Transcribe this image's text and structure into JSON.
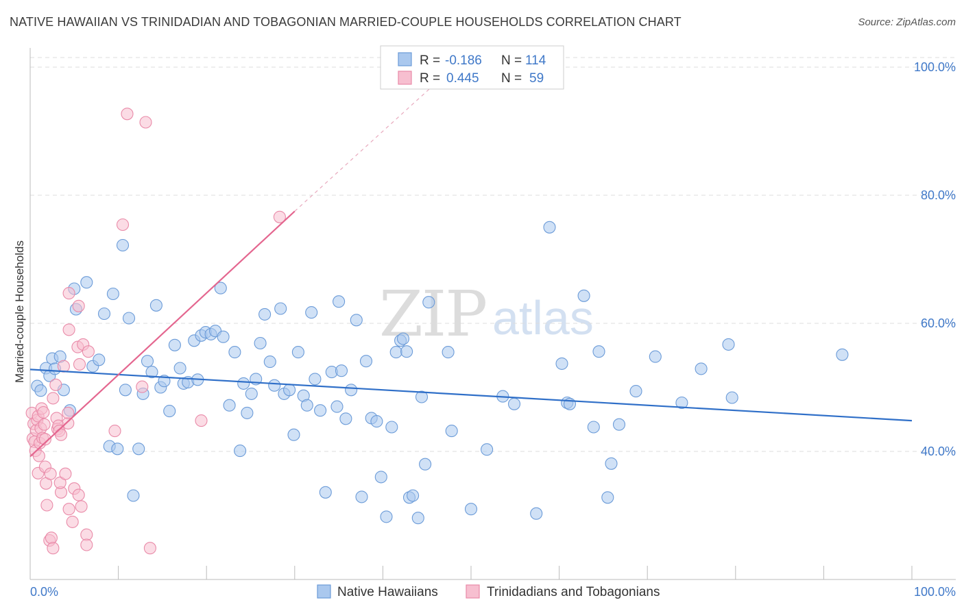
{
  "header": {
    "title": "NATIVE HAWAIIAN VS TRINIDADIAN AND TOBAGONIAN MARRIED-COUPLE HOUSEHOLDS CORRELATION CHART",
    "source": "Source: ZipAtlas.com"
  },
  "watermark": {
    "zip": "ZIP",
    "atlas": "atlas"
  },
  "legend_top": {
    "rows": [
      {
        "r_label": "R = ",
        "r_value": "-0.186",
        "n_label": "N = ",
        "n_value": "114"
      },
      {
        "r_label": "R = ",
        "r_value": "0.445",
        "n_label": "N = ",
        "n_value": "59"
      }
    ]
  },
  "colors": {
    "blue_fill": "#aac8ee",
    "blue_stroke": "#6b9bd8",
    "blue_line": "#2f6fc8",
    "pink_fill": "#f7bfd0",
    "pink_stroke": "#e98aa8",
    "pink_line": "#e4668f",
    "grid": "#dddddd",
    "axis_text": "#3f78c8"
  },
  "chart_data": {
    "type": "scatter",
    "title": "NATIVE HAWAIIAN VS TRINIDADIAN AND TOBAGONIAN MARRIED-COUPLE HOUSEHOLDS CORRELATION CHART",
    "xlabel": "",
    "ylabel": "Married-couple Households",
    "xlim": [
      0,
      100
    ],
    "ylim": [
      20,
      103
    ],
    "x_tick_labels": [
      "0.0%",
      "100.0%"
    ],
    "y_ticks": [
      40,
      60,
      80,
      100
    ],
    "y_tick_labels": [
      "40.0%",
      "60.0%",
      "80.0%",
      "100.0%"
    ],
    "grid": true,
    "legend_position": "bottom",
    "series": [
      {
        "name": "Native Hawaiians",
        "color": "#aac8ee",
        "r": -0.186,
        "n": 114,
        "trend": {
          "x": [
            0,
            100
          ],
          "y": [
            52.8,
            44.8
          ],
          "dashed_extension": false
        },
        "points": [
          [
            0.8,
            50.2
          ],
          [
            1.2,
            49.5
          ],
          [
            1.8,
            53.0
          ],
          [
            2.2,
            51.8
          ],
          [
            2.5,
            54.5
          ],
          [
            2.8,
            52.9
          ],
          [
            3.4,
            54.8
          ],
          [
            3.8,
            49.6
          ],
          [
            4.5,
            46.4
          ],
          [
            5.0,
            65.4
          ],
          [
            5.2,
            62.2
          ],
          [
            6.4,
            66.4
          ],
          [
            7.1,
            53.3
          ],
          [
            7.8,
            54.3
          ],
          [
            8.4,
            61.5
          ],
          [
            9.0,
            40.8
          ],
          [
            9.4,
            64.6
          ],
          [
            9.9,
            40.4
          ],
          [
            10.5,
            72.2
          ],
          [
            10.8,
            49.6
          ],
          [
            11.2,
            60.8
          ],
          [
            11.7,
            33.1
          ],
          [
            12.3,
            40.4
          ],
          [
            12.8,
            49.0
          ],
          [
            13.3,
            54.1
          ],
          [
            13.8,
            52.4
          ],
          [
            14.3,
            62.8
          ],
          [
            14.8,
            50.0
          ],
          [
            15.2,
            51.0
          ],
          [
            15.8,
            46.3
          ],
          [
            16.4,
            56.6
          ],
          [
            17.0,
            53.0
          ],
          [
            17.4,
            50.6
          ],
          [
            17.9,
            50.8
          ],
          [
            18.6,
            57.3
          ],
          [
            19.0,
            51.2
          ],
          [
            19.4,
            58.1
          ],
          [
            19.9,
            58.6
          ],
          [
            20.5,
            58.3
          ],
          [
            21.0,
            58.8
          ],
          [
            21.6,
            65.5
          ],
          [
            21.9,
            57.9
          ],
          [
            22.6,
            47.2
          ],
          [
            23.2,
            55.5
          ],
          [
            23.8,
            40.1
          ],
          [
            24.2,
            50.6
          ],
          [
            24.6,
            46.0
          ],
          [
            25.1,
            49.0
          ],
          [
            25.6,
            51.3
          ],
          [
            26.1,
            56.9
          ],
          [
            26.6,
            61.4
          ],
          [
            27.2,
            54.0
          ],
          [
            27.7,
            50.3
          ],
          [
            28.4,
            62.3
          ],
          [
            28.8,
            49.0
          ],
          [
            29.4,
            49.6
          ],
          [
            29.9,
            42.6
          ],
          [
            30.4,
            55.5
          ],
          [
            31.0,
            48.7
          ],
          [
            31.4,
            47.2
          ],
          [
            31.9,
            61.7
          ],
          [
            32.3,
            51.3
          ],
          [
            32.9,
            46.4
          ],
          [
            33.5,
            33.6
          ],
          [
            34.2,
            52.4
          ],
          [
            35.0,
            63.4
          ],
          [
            34.8,
            47.0
          ],
          [
            35.3,
            52.6
          ],
          [
            35.8,
            45.1
          ],
          [
            36.4,
            49.6
          ],
          [
            37.0,
            60.5
          ],
          [
            37.6,
            32.9
          ],
          [
            38.1,
            54.1
          ],
          [
            38.7,
            45.2
          ],
          [
            39.3,
            44.7
          ],
          [
            39.8,
            36.0
          ],
          [
            40.4,
            29.8
          ],
          [
            41.0,
            43.8
          ],
          [
            41.5,
            55.5
          ],
          [
            42.0,
            57.3
          ],
          [
            42.3,
            57.6
          ],
          [
            42.7,
            55.6
          ],
          [
            43.0,
            32.8
          ],
          [
            43.4,
            33.1
          ],
          [
            44.0,
            29.6
          ],
          [
            44.4,
            48.5
          ],
          [
            44.8,
            38.0
          ],
          [
            45.2,
            63.3
          ],
          [
            47.4,
            55.5
          ],
          [
            47.8,
            43.2
          ],
          [
            50.0,
            31.0
          ],
          [
            51.8,
            40.3
          ],
          [
            53.6,
            48.6
          ],
          [
            54.9,
            47.4
          ],
          [
            57.4,
            30.3
          ],
          [
            58.9,
            75.0
          ],
          [
            60.3,
            53.7
          ],
          [
            60.9,
            47.6
          ],
          [
            61.2,
            47.4
          ],
          [
            62.8,
            64.3
          ],
          [
            63.9,
            43.8
          ],
          [
            64.5,
            55.6
          ],
          [
            65.5,
            32.8
          ],
          [
            65.9,
            38.1
          ],
          [
            66.8,
            44.2
          ],
          [
            68.7,
            49.4
          ],
          [
            70.9,
            54.8
          ],
          [
            73.9,
            47.6
          ],
          [
            76.1,
            52.9
          ],
          [
            79.2,
            56.7
          ],
          [
            79.6,
            48.4
          ],
          [
            92.1,
            55.1
          ]
        ]
      },
      {
        "name": "Trinidadians and Tobagonians",
        "color": "#f7bfd0",
        "r": 0.445,
        "n": 59,
        "trend": {
          "x": [
            0,
            30
          ],
          "y": [
            39.2,
            77.5
          ],
          "dashed_extension": true,
          "dash_to": [
            46,
            97.5
          ]
        },
        "points": [
          [
            0.2,
            46.0
          ],
          [
            0.3,
            42.0
          ],
          [
            0.4,
            44.3
          ],
          [
            0.5,
            41.5
          ],
          [
            0.6,
            40.1
          ],
          [
            0.7,
            43.3
          ],
          [
            0.8,
            44.9
          ],
          [
            0.9,
            45.5
          ],
          [
            1.0,
            39.3
          ],
          [
            1.1,
            41.3
          ],
          [
            1.2,
            43.6
          ],
          [
            1.3,
            46.7
          ],
          [
            1.4,
            42.1
          ],
          [
            1.5,
            46.1
          ],
          [
            1.6,
            44.2
          ],
          [
            1.7,
            41.9
          ],
          [
            0.9,
            36.6
          ],
          [
            1.7,
            37.6
          ],
          [
            1.8,
            35.0
          ],
          [
            1.9,
            31.6
          ],
          [
            2.2,
            26.1
          ],
          [
            2.4,
            26.5
          ],
          [
            2.6,
            24.9
          ],
          [
            2.3,
            36.5
          ],
          [
            2.6,
            48.3
          ],
          [
            2.9,
            50.4
          ],
          [
            3.0,
            45.2
          ],
          [
            3.1,
            43.5
          ],
          [
            3.2,
            44.0
          ],
          [
            3.3,
            43.2
          ],
          [
            3.5,
            42.6
          ],
          [
            3.5,
            33.6
          ],
          [
            3.4,
            35.1
          ],
          [
            3.8,
            53.3
          ],
          [
            4.0,
            36.5
          ],
          [
            4.3,
            44.4
          ],
          [
            4.3,
            46.0
          ],
          [
            4.4,
            31.0
          ],
          [
            4.4,
            59.0
          ],
          [
            4.4,
            64.7
          ],
          [
            4.8,
            29.0
          ],
          [
            5.0,
            34.2
          ],
          [
            5.4,
            56.3
          ],
          [
            5.5,
            62.7
          ],
          [
            5.5,
            33.2
          ],
          [
            5.6,
            53.6
          ],
          [
            5.8,
            31.4
          ],
          [
            6.0,
            56.7
          ],
          [
            6.4,
            27.0
          ],
          [
            6.4,
            25.4
          ],
          [
            6.6,
            55.6
          ],
          [
            9.6,
            43.2
          ],
          [
            10.5,
            75.4
          ],
          [
            11.0,
            92.7
          ],
          [
            12.7,
            50.1
          ],
          [
            13.1,
            91.4
          ],
          [
            13.6,
            24.9
          ],
          [
            19.4,
            44.8
          ],
          [
            28.3,
            76.6
          ]
        ]
      }
    ]
  }
}
